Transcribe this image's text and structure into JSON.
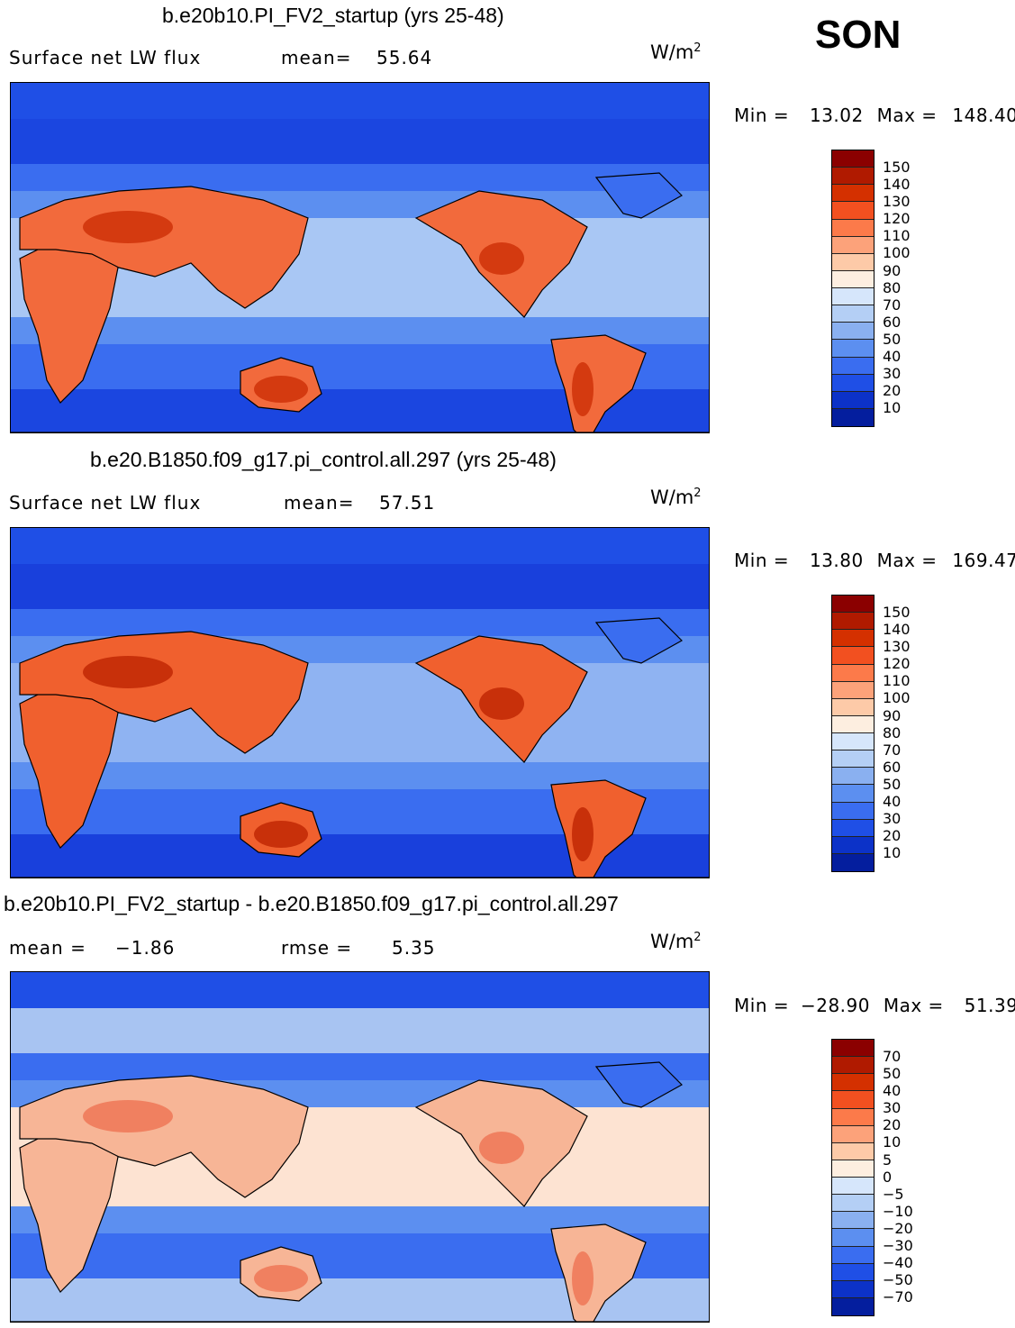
{
  "season": "SON",
  "units_text": "W/m",
  "units_sup": "2",
  "panels": [
    {
      "title": "b.e20b10.PI_FV2_startup (yrs 25-48)",
      "left_label": "Surface net LW flux",
      "mid_label": "mean=",
      "mid_value": "55.64",
      "min_label": "Min =",
      "min_value": "13.02",
      "max_label": "Max =",
      "max_value": "148.40",
      "scale": [
        "150",
        "140",
        "130",
        "120",
        "110",
        "100",
        "90",
        "80",
        "70",
        "60",
        "50",
        "40",
        "30",
        "20",
        "10"
      ],
      "colors": [
        "#8b0000",
        "#b01a00",
        "#d43000",
        "#f25020",
        "#fc7a4a",
        "#fca27a",
        "#fdcaa8",
        "#fdeee0",
        "#d6e6fb",
        "#b4cff5",
        "#8ab0f0",
        "#5c8ff0",
        "#3a6df0",
        "#1f4fe6",
        "#0c32c8",
        "#041e9e"
      ],
      "fill": {
        "ocean_hi": "#a9c7f4",
        "land_warm": "#f26a3c",
        "land_hot": "#d43a10",
        "cold": "#1b46e0"
      }
    },
    {
      "title": "b.e20.B1850.f09_g17.pi_control.all.297 (yrs 25-48)",
      "left_label": "Surface net LW flux",
      "mid_label": "mean=",
      "mid_value": "57.51",
      "min_label": "Min =",
      "min_value": "13.80",
      "max_label": "Max =",
      "max_value": "169.47",
      "scale": [
        "150",
        "140",
        "130",
        "120",
        "110",
        "100",
        "90",
        "80",
        "70",
        "60",
        "50",
        "40",
        "30",
        "20",
        "10"
      ],
      "colors": [
        "#8b0000",
        "#b01a00",
        "#d43000",
        "#f25020",
        "#fc7a4a",
        "#fca27a",
        "#fdcaa8",
        "#fdeee0",
        "#d6e6fb",
        "#b4cff5",
        "#8ab0f0",
        "#5c8ff0",
        "#3a6df0",
        "#1f4fe6",
        "#0c32c8",
        "#041e9e"
      ],
      "fill": {
        "ocean_hi": "#8fb3f2",
        "land_warm": "#f0602e",
        "land_hot": "#c8300a",
        "cold": "#1940dc"
      }
    },
    {
      "title": "b.e20b10.PI_FV2_startup - b.e20.B1850.f09_g17.pi_control.all.297",
      "left_label": "mean =",
      "left_value": "−1.86",
      "mid_label": "rmse =",
      "mid_value": "5.35",
      "min_label": "Min =",
      "min_value": "−28.90",
      "max_label": "Max =",
      "max_value": "51.39",
      "scale": [
        "70",
        "50",
        "40",
        "30",
        "20",
        "10",
        "5",
        "0",
        "−5",
        "−10",
        "−20",
        "−30",
        "−40",
        "−50",
        "−70"
      ],
      "colors": [
        "#8b0000",
        "#b01a00",
        "#d43000",
        "#f25020",
        "#fc7a4a",
        "#fca27a",
        "#fdcaa8",
        "#fdeee0",
        "#d6e6fb",
        "#b4cff5",
        "#8ab0f0",
        "#5c8ff0",
        "#3a6df0",
        "#1f4fe6",
        "#0c32c8",
        "#041e9e"
      ],
      "fill": {
        "ocean_hi": "#fde3d2",
        "land_warm": "#f7b596",
        "land_hot": "#f08060",
        "cold": "#a8c4f2"
      }
    }
  ]
}
